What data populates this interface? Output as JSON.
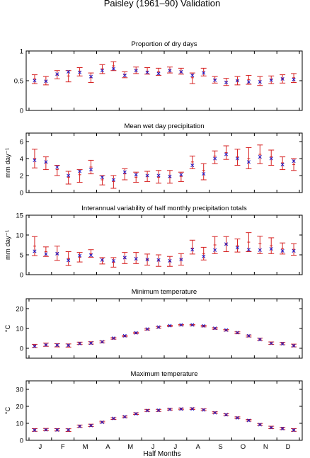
{
  "figure_title": "Paisley (1961–90) Validation",
  "xlabel": "Half Months",
  "month_labels": [
    "J",
    "F",
    "M",
    "A",
    "M",
    "J",
    "J",
    "A",
    "S",
    "O",
    "N",
    "D"
  ],
  "colors": {
    "observed": "#d62020",
    "modelled": "#1a1acc",
    "axes": "#000000"
  },
  "chart_data": [
    {
      "type": "errorbar",
      "title": "Proportion of dry days",
      "ylabel": "",
      "ylim": [
        0,
        1
      ],
      "yticks": [
        "0",
        "0.5",
        "1"
      ],
      "ytick_values": [
        0,
        0.5,
        1
      ],
      "x": [
        1,
        2,
        3,
        4,
        5,
        6,
        7,
        8,
        9,
        10,
        11,
        12,
        13,
        14,
        15,
        16,
        17,
        18,
        19,
        20,
        21,
        22,
        23,
        24
      ],
      "series": [
        {
          "name": "",
          "kind": "observed-range",
          "mean": [
            0.53,
            0.5,
            0.6,
            0.58,
            0.65,
            0.55,
            0.7,
            0.75,
            0.6,
            0.68,
            0.66,
            0.65,
            0.68,
            0.66,
            0.55,
            0.65,
            0.52,
            0.48,
            0.5,
            0.52,
            0.5,
            0.52,
            0.53,
            0.55
          ],
          "lower": [
            0.45,
            0.43,
            0.53,
            0.48,
            0.58,
            0.47,
            0.62,
            0.67,
            0.55,
            0.62,
            0.61,
            0.59,
            0.63,
            0.61,
            0.45,
            0.58,
            0.46,
            0.42,
            0.43,
            0.44,
            0.42,
            0.45,
            0.46,
            0.47
          ],
          "upper": [
            0.6,
            0.57,
            0.67,
            0.67,
            0.72,
            0.63,
            0.77,
            0.82,
            0.65,
            0.73,
            0.72,
            0.71,
            0.73,
            0.71,
            0.63,
            0.71,
            0.57,
            0.54,
            0.57,
            0.59,
            0.57,
            0.58,
            0.6,
            0.62
          ]
        },
        {
          "name": "",
          "kind": "modelled",
          "values": [
            0.5,
            0.49,
            0.61,
            0.65,
            0.64,
            0.57,
            0.67,
            0.7,
            0.59,
            0.67,
            0.64,
            0.62,
            0.67,
            0.65,
            0.59,
            0.63,
            0.51,
            0.47,
            0.5,
            0.48,
            0.48,
            0.51,
            0.53,
            0.52
          ]
        }
      ]
    },
    {
      "type": "errorbar",
      "title": "Mean wet day precipitation",
      "ylabel": "mm day⁻¹",
      "ylim": [
        0,
        7
      ],
      "yticks": [
        "0",
        "2",
        "4",
        "6"
      ],
      "ytick_values": [
        0,
        2,
        4,
        6
      ],
      "x": [
        1,
        2,
        3,
        4,
        5,
        6,
        7,
        8,
        9,
        10,
        11,
        12,
        13,
        14,
        15,
        16,
        17,
        18,
        19,
        20,
        21,
        22,
        23,
        24
      ],
      "series": [
        {
          "name": "",
          "kind": "observed-range",
          "mean": [
            4.0,
            3.5,
            2.7,
            1.8,
            2.1,
            3.0,
            1.5,
            1.3,
            2.2,
            1.8,
            1.9,
            1.8,
            1.8,
            1.9,
            3.6,
            2.6,
            4.3,
            4.7,
            4.2,
            4.0,
            4.5,
            4.2,
            3.5,
            3.3
          ],
          "lower": [
            2.9,
            2.7,
            2.0,
            1.0,
            1.2,
            2.2,
            0.9,
            0.5,
            1.5,
            1.2,
            1.3,
            1.1,
            1.1,
            1.3,
            2.8,
            1.5,
            3.4,
            3.9,
            3.2,
            2.8,
            3.4,
            3.2,
            2.7,
            2.6
          ],
          "upper": [
            5.1,
            4.2,
            3.2,
            2.5,
            2.7,
            3.8,
            2.0,
            2.0,
            2.8,
            2.4,
            2.5,
            2.6,
            2.6,
            2.4,
            4.3,
            3.4,
            4.9,
            5.5,
            5.1,
            5.3,
            5.6,
            5.0,
            4.2,
            4.0
          ]
        },
        {
          "name": "",
          "kind": "modelled",
          "values": [
            3.8,
            3.6,
            3.0,
            2.0,
            2.5,
            2.7,
            1.8,
            1.5,
            2.4,
            2.1,
            2.0,
            2.0,
            1.9,
            2.1,
            3.2,
            2.2,
            4.0,
            4.5,
            4.0,
            3.6,
            4.2,
            4.0,
            3.3,
            3.7
          ]
        }
      ]
    },
    {
      "type": "errorbar",
      "title": "Interannual variability of half monthly precipitation totals",
      "ylabel": "mm day⁻¹",
      "ylim": [
        0,
        15
      ],
      "yticks": [
        "0",
        "5",
        "10",
        "15"
      ],
      "ytick_values": [
        0,
        5,
        10,
        15
      ],
      "x": [
        1,
        2,
        3,
        4,
        5,
        6,
        7,
        8,
        9,
        10,
        11,
        12,
        13,
        14,
        15,
        16,
        17,
        18,
        19,
        20,
        21,
        22,
        23,
        24
      ],
      "series": [
        {
          "name": "",
          "kind": "observed-range",
          "mean": [
            7.2,
            5.8,
            5.4,
            4.1,
            4.4,
            5.3,
            3.5,
            3.1,
            4.2,
            4.2,
            3.8,
            3.6,
            3.3,
            3.9,
            6.7,
            5.3,
            7.5,
            7.7,
            7.3,
            8.2,
            7.8,
            7.3,
            6.6,
            6.4
          ],
          "lower": [
            4.8,
            4.6,
            3.6,
            2.3,
            3.2,
            4.4,
            2.7,
            1.9,
            2.8,
            2.8,
            2.4,
            2.1,
            2.1,
            2.4,
            5.2,
            3.7,
            5.3,
            5.8,
            5.7,
            5.8,
            5.3,
            5.3,
            5.2,
            4.9
          ],
          "upper": [
            9.6,
            7.0,
            7.2,
            5.8,
            5.6,
            6.3,
            4.3,
            4.3,
            5.6,
            5.6,
            5.2,
            5.0,
            4.6,
            5.3,
            8.7,
            6.9,
            9.6,
            9.6,
            9.0,
            10.6,
            9.7,
            9.3,
            8.0,
            7.8
          ]
        },
        {
          "name": "",
          "kind": "modelled",
          "values": [
            5.9,
            5.2,
            5.3,
            3.6,
            4.8,
            4.9,
            3.7,
            3.5,
            4.3,
            4.0,
            3.8,
            3.7,
            3.5,
            3.8,
            6.3,
            4.6,
            6.2,
            7.7,
            6.8,
            6.3,
            6.2,
            6.5,
            6.0,
            6.0
          ]
        }
      ]
    },
    {
      "type": "errorbar",
      "title": "Minimum temperature",
      "ylabel": "°C",
      "ylim": [
        -5,
        25
      ],
      "yticks": [
        "0",
        "10",
        "20"
      ],
      "ytick_values": [
        0,
        10,
        20
      ],
      "x": [
        1,
        2,
        3,
        4,
        5,
        6,
        7,
        8,
        9,
        10,
        11,
        12,
        13,
        14,
        15,
        16,
        17,
        18,
        19,
        20,
        21,
        22,
        23,
        24
      ],
      "series": [
        {
          "name": "",
          "kind": "observed-range",
          "mean": [
            1.2,
            1.8,
            1.5,
            1.4,
            2.5,
            2.7,
            3.2,
            5.0,
            6.2,
            7.7,
            9.6,
            10.6,
            11.3,
            11.7,
            11.7,
            11.2,
            10.0,
            9.1,
            7.8,
            6.2,
            4.5,
            2.6,
            2.4,
            1.4
          ],
          "lower": [
            0.4,
            1.0,
            0.7,
            0.6,
            1.9,
            2.1,
            2.7,
            4.6,
            5.8,
            7.3,
            9.2,
            10.2,
            11.0,
            11.4,
            11.4,
            10.8,
            9.6,
            8.7,
            7.3,
            5.7,
            3.9,
            2.0,
            1.8,
            0.7
          ],
          "upper": [
            2.0,
            2.6,
            2.3,
            2.2,
            3.1,
            3.3,
            3.7,
            5.4,
            6.6,
            8.1,
            10.0,
            11.0,
            11.6,
            12.0,
            12.0,
            11.6,
            10.4,
            9.5,
            8.3,
            6.7,
            5.1,
            3.2,
            3.0,
            2.1
          ]
        },
        {
          "name": "",
          "kind": "modelled",
          "values": [
            1.1,
            1.7,
            1.6,
            1.5,
            2.4,
            2.6,
            3.3,
            5.1,
            6.3,
            7.8,
            9.7,
            10.7,
            11.4,
            11.8,
            11.8,
            11.3,
            10.1,
            9.2,
            7.9,
            6.3,
            4.4,
            2.5,
            2.3,
            1.3
          ]
        }
      ]
    },
    {
      "type": "errorbar",
      "title": "Maximum temperature",
      "ylabel": "°C",
      "ylim": [
        0,
        35
      ],
      "yticks": [
        "0",
        "10",
        "20",
        "30"
      ],
      "ytick_values": [
        0,
        10,
        20,
        30
      ],
      "x": [
        1,
        2,
        3,
        4,
        5,
        6,
        7,
        8,
        9,
        10,
        11,
        12,
        13,
        14,
        15,
        16,
        17,
        18,
        19,
        20,
        21,
        22,
        23,
        24
      ],
      "series": [
        {
          "name": "",
          "kind": "observed-range",
          "mean": [
            6.1,
            6.3,
            6.2,
            6.0,
            8.3,
            8.8,
            10.7,
            12.8,
            13.8,
            15.7,
            17.6,
            17.6,
            18.3,
            18.5,
            18.6,
            18.0,
            16.3,
            15.0,
            13.3,
            11.8,
            9.3,
            7.6,
            7.0,
            6.1
          ],
          "lower": [
            5.3,
            5.6,
            5.5,
            5.2,
            7.6,
            8.1,
            10.2,
            12.3,
            13.3,
            15.2,
            17.0,
            17.0,
            17.8,
            18.0,
            18.1,
            17.5,
            15.8,
            14.4,
            12.8,
            11.3,
            8.7,
            6.9,
            6.3,
            5.3
          ],
          "upper": [
            6.9,
            7.0,
            6.9,
            6.8,
            9.0,
            9.5,
            11.2,
            13.3,
            14.3,
            16.2,
            18.2,
            18.2,
            18.8,
            19.0,
            19.1,
            18.5,
            16.8,
            15.6,
            13.8,
            12.3,
            9.9,
            8.3,
            7.7,
            6.9
          ]
        },
        {
          "name": "",
          "kind": "modelled",
          "values": [
            6.0,
            6.2,
            6.1,
            6.1,
            8.2,
            8.7,
            10.6,
            12.9,
            13.9,
            15.6,
            17.5,
            17.7,
            18.2,
            18.4,
            18.5,
            17.9,
            16.2,
            15.1,
            13.2,
            11.7,
            9.2,
            7.5,
            6.9,
            6.0
          ]
        }
      ]
    }
  ]
}
